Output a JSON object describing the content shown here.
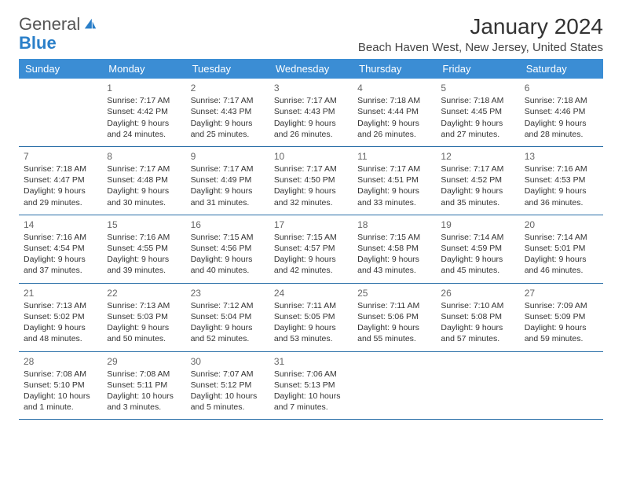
{
  "logo": {
    "gray": "General",
    "blue": "Blue"
  },
  "title": "January 2024",
  "location": "Beach Haven West, New Jersey, United States",
  "colors": {
    "header_bg": "#3b8dd4",
    "header_text": "#ffffff",
    "rule": "#2a6fa8",
    "logo_blue": "#2a7fc9",
    "text": "#333333"
  },
  "day_headers": [
    "Sunday",
    "Monday",
    "Tuesday",
    "Wednesday",
    "Thursday",
    "Friday",
    "Saturday"
  ],
  "weeks": [
    [
      null,
      {
        "n": "1",
        "sr": "Sunrise: 7:17 AM",
        "ss": "Sunset: 4:42 PM",
        "d1": "Daylight: 9 hours",
        "d2": "and 24 minutes."
      },
      {
        "n": "2",
        "sr": "Sunrise: 7:17 AM",
        "ss": "Sunset: 4:43 PM",
        "d1": "Daylight: 9 hours",
        "d2": "and 25 minutes."
      },
      {
        "n": "3",
        "sr": "Sunrise: 7:17 AM",
        "ss": "Sunset: 4:43 PM",
        "d1": "Daylight: 9 hours",
        "d2": "and 26 minutes."
      },
      {
        "n": "4",
        "sr": "Sunrise: 7:18 AM",
        "ss": "Sunset: 4:44 PM",
        "d1": "Daylight: 9 hours",
        "d2": "and 26 minutes."
      },
      {
        "n": "5",
        "sr": "Sunrise: 7:18 AM",
        "ss": "Sunset: 4:45 PM",
        "d1": "Daylight: 9 hours",
        "d2": "and 27 minutes."
      },
      {
        "n": "6",
        "sr": "Sunrise: 7:18 AM",
        "ss": "Sunset: 4:46 PM",
        "d1": "Daylight: 9 hours",
        "d2": "and 28 minutes."
      }
    ],
    [
      {
        "n": "7",
        "sr": "Sunrise: 7:18 AM",
        "ss": "Sunset: 4:47 PM",
        "d1": "Daylight: 9 hours",
        "d2": "and 29 minutes."
      },
      {
        "n": "8",
        "sr": "Sunrise: 7:17 AM",
        "ss": "Sunset: 4:48 PM",
        "d1": "Daylight: 9 hours",
        "d2": "and 30 minutes."
      },
      {
        "n": "9",
        "sr": "Sunrise: 7:17 AM",
        "ss": "Sunset: 4:49 PM",
        "d1": "Daylight: 9 hours",
        "d2": "and 31 minutes."
      },
      {
        "n": "10",
        "sr": "Sunrise: 7:17 AM",
        "ss": "Sunset: 4:50 PM",
        "d1": "Daylight: 9 hours",
        "d2": "and 32 minutes."
      },
      {
        "n": "11",
        "sr": "Sunrise: 7:17 AM",
        "ss": "Sunset: 4:51 PM",
        "d1": "Daylight: 9 hours",
        "d2": "and 33 minutes."
      },
      {
        "n": "12",
        "sr": "Sunrise: 7:17 AM",
        "ss": "Sunset: 4:52 PM",
        "d1": "Daylight: 9 hours",
        "d2": "and 35 minutes."
      },
      {
        "n": "13",
        "sr": "Sunrise: 7:16 AM",
        "ss": "Sunset: 4:53 PM",
        "d1": "Daylight: 9 hours",
        "d2": "and 36 minutes."
      }
    ],
    [
      {
        "n": "14",
        "sr": "Sunrise: 7:16 AM",
        "ss": "Sunset: 4:54 PM",
        "d1": "Daylight: 9 hours",
        "d2": "and 37 minutes."
      },
      {
        "n": "15",
        "sr": "Sunrise: 7:16 AM",
        "ss": "Sunset: 4:55 PM",
        "d1": "Daylight: 9 hours",
        "d2": "and 39 minutes."
      },
      {
        "n": "16",
        "sr": "Sunrise: 7:15 AM",
        "ss": "Sunset: 4:56 PM",
        "d1": "Daylight: 9 hours",
        "d2": "and 40 minutes."
      },
      {
        "n": "17",
        "sr": "Sunrise: 7:15 AM",
        "ss": "Sunset: 4:57 PM",
        "d1": "Daylight: 9 hours",
        "d2": "and 42 minutes."
      },
      {
        "n": "18",
        "sr": "Sunrise: 7:15 AM",
        "ss": "Sunset: 4:58 PM",
        "d1": "Daylight: 9 hours",
        "d2": "and 43 minutes."
      },
      {
        "n": "19",
        "sr": "Sunrise: 7:14 AM",
        "ss": "Sunset: 4:59 PM",
        "d1": "Daylight: 9 hours",
        "d2": "and 45 minutes."
      },
      {
        "n": "20",
        "sr": "Sunrise: 7:14 AM",
        "ss": "Sunset: 5:01 PM",
        "d1": "Daylight: 9 hours",
        "d2": "and 46 minutes."
      }
    ],
    [
      {
        "n": "21",
        "sr": "Sunrise: 7:13 AM",
        "ss": "Sunset: 5:02 PM",
        "d1": "Daylight: 9 hours",
        "d2": "and 48 minutes."
      },
      {
        "n": "22",
        "sr": "Sunrise: 7:13 AM",
        "ss": "Sunset: 5:03 PM",
        "d1": "Daylight: 9 hours",
        "d2": "and 50 minutes."
      },
      {
        "n": "23",
        "sr": "Sunrise: 7:12 AM",
        "ss": "Sunset: 5:04 PM",
        "d1": "Daylight: 9 hours",
        "d2": "and 52 minutes."
      },
      {
        "n": "24",
        "sr": "Sunrise: 7:11 AM",
        "ss": "Sunset: 5:05 PM",
        "d1": "Daylight: 9 hours",
        "d2": "and 53 minutes."
      },
      {
        "n": "25",
        "sr": "Sunrise: 7:11 AM",
        "ss": "Sunset: 5:06 PM",
        "d1": "Daylight: 9 hours",
        "d2": "and 55 minutes."
      },
      {
        "n": "26",
        "sr": "Sunrise: 7:10 AM",
        "ss": "Sunset: 5:08 PM",
        "d1": "Daylight: 9 hours",
        "d2": "and 57 minutes."
      },
      {
        "n": "27",
        "sr": "Sunrise: 7:09 AM",
        "ss": "Sunset: 5:09 PM",
        "d1": "Daylight: 9 hours",
        "d2": "and 59 minutes."
      }
    ],
    [
      {
        "n": "28",
        "sr": "Sunrise: 7:08 AM",
        "ss": "Sunset: 5:10 PM",
        "d1": "Daylight: 10 hours",
        "d2": "and 1 minute."
      },
      {
        "n": "29",
        "sr": "Sunrise: 7:08 AM",
        "ss": "Sunset: 5:11 PM",
        "d1": "Daylight: 10 hours",
        "d2": "and 3 minutes."
      },
      {
        "n": "30",
        "sr": "Sunrise: 7:07 AM",
        "ss": "Sunset: 5:12 PM",
        "d1": "Daylight: 10 hours",
        "d2": "and 5 minutes."
      },
      {
        "n": "31",
        "sr": "Sunrise: 7:06 AM",
        "ss": "Sunset: 5:13 PM",
        "d1": "Daylight: 10 hours",
        "d2": "and 7 minutes."
      },
      null,
      null,
      null
    ]
  ]
}
